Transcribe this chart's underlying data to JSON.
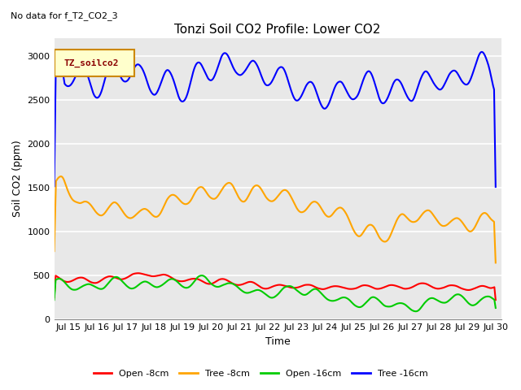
{
  "title": "Tonzi Soil CO2 Profile: Lower CO2",
  "suptitle_left": "No data for f_T2_CO2_3",
  "xlabel": "Time",
  "ylabel": "Soil CO2 (ppm)",
  "legend_label": "TZ_soilco2",
  "series_labels": [
    "Open -8cm",
    "Tree -8cm",
    "Open -16cm",
    "Tree -16cm"
  ],
  "series_colors": [
    "#ff0000",
    "#ffa500",
    "#00cc00",
    "#0000ff"
  ],
  "ylim": [
    0,
    3200
  ],
  "yticks": [
    0,
    500,
    1000,
    1500,
    2000,
    2500,
    3000
  ],
  "xlim_days": [
    14.5,
    30.2
  ],
  "xtick_days": [
    15,
    16,
    17,
    18,
    19,
    20,
    21,
    22,
    23,
    24,
    25,
    26,
    27,
    28,
    29,
    30
  ],
  "xtick_labels": [
    "Jul 15",
    "Jul 16",
    "Jul 17",
    "Jul 18",
    "Jul 19",
    "Jul 20",
    "Jul 21",
    "Jul 22",
    "Jul 23",
    "Jul 24",
    "Jul 25",
    "Jul 26",
    "Jul 27",
    "Jul 28",
    "Jul 29",
    "Jul 30"
  ],
  "bg_color": "#e8e8e8",
  "fig_bg": "#ffffff",
  "grid_color": "#ffffff",
  "linewidth": 1.5,
  "seed": 42
}
